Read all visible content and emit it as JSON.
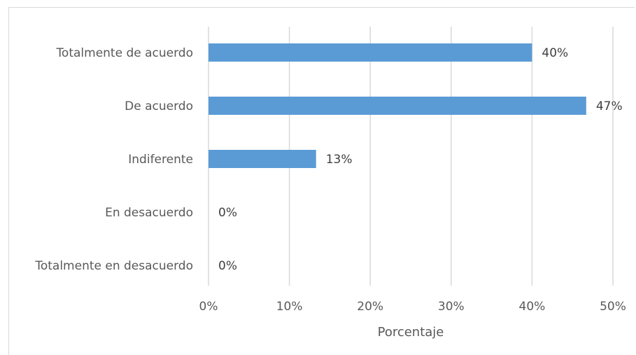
{
  "chart_data": {
    "type": "bar",
    "orientation": "horizontal",
    "categories": [
      "Totalmente de acuerdo",
      "De acuerdo",
      "Indiferente",
      "En desacuerdo",
      "Totalmente en desacuerdo"
    ],
    "values": [
      40,
      46.7,
      13.3,
      0,
      0
    ],
    "data_labels": [
      "40%",
      "47%",
      "13%",
      "0%",
      "0%"
    ],
    "xlabel": "Porcentaje",
    "ylabel": "",
    "xlim": [
      0,
      50
    ],
    "x_ticks": [
      0,
      10,
      20,
      30,
      40,
      50
    ],
    "x_tick_labels": [
      "0%",
      "10%",
      "20%",
      "30%",
      "40%",
      "50%"
    ],
    "grid": "vertical",
    "bar_color": "#5b9bd5",
    "gridline_color": "#d9d9d9"
  }
}
